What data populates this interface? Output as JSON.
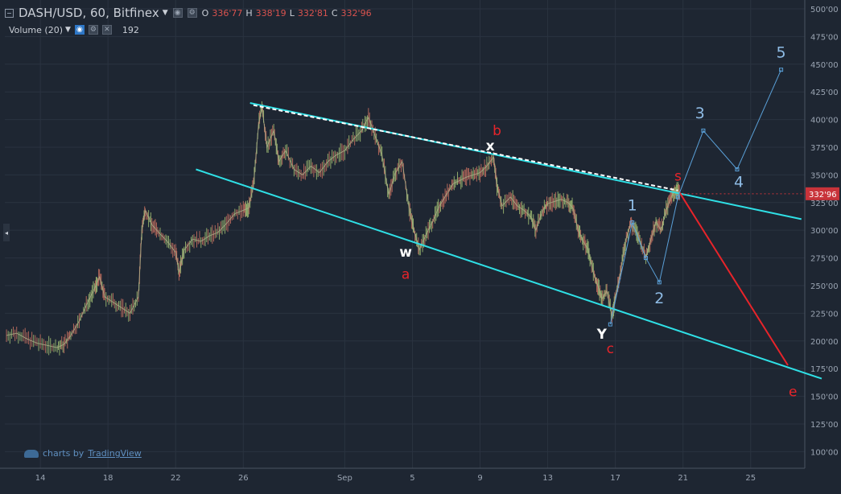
{
  "header": {
    "symbol": "DASH/USD, 60, Bitfinex",
    "ohlc": [
      {
        "k": "O",
        "v": "336'77"
      },
      {
        "k": "H",
        "v": "338'19"
      },
      {
        "k": "L",
        "v": "332'81"
      },
      {
        "k": "C",
        "v": "332'96"
      }
    ],
    "volume_label": "Volume (20)",
    "volume_value": "192"
  },
  "credit": {
    "prefix": "charts by",
    "brand": "TradingView"
  },
  "colors": {
    "background": "#1e2632",
    "grid": "#2a3340",
    "axis_text": "#9aa4b2",
    "channel": "#2fe0e6",
    "red_line": "#e8242a",
    "blue_line": "#5aa0d8",
    "label_red": "#e8242a",
    "label_blue": "#8fbce6",
    "label_white": "#ffffff",
    "price_tag": "#c8333a"
  },
  "chart_data": {
    "type": "line",
    "title": "DASH/USD, 60, Bitfinex",
    "ylim": [
      85,
      508
    ],
    "y_ticks": [
      100,
      125,
      150,
      175,
      200,
      225,
      250,
      275,
      300,
      325,
      350,
      375,
      400,
      425,
      450,
      475,
      500
    ],
    "y_tick_labels": [
      "100'00",
      "125'00",
      "150'00",
      "175'00",
      "200'00",
      "225'00",
      "250'00",
      "275'00",
      "300'00",
      "325'00",
      "350'00",
      "375'00",
      "400'00",
      "425'00",
      "450'00",
      "475'00",
      "500'00"
    ],
    "x_ticks": [
      {
        "label": "14",
        "day": 14
      },
      {
        "label": "18",
        "day": 18
      },
      {
        "label": "22",
        "day": 22
      },
      {
        "label": "26",
        "day": 26
      },
      {
        "label": "Sep",
        "day": 32
      },
      {
        "label": "5",
        "day": 36
      },
      {
        "label": "9",
        "day": 40
      },
      {
        "label": "13",
        "day": 44
      },
      {
        "label": "17",
        "day": 48
      },
      {
        "label": "21",
        "day": 52
      },
      {
        "label": "25",
        "day": 56
      }
    ],
    "x_range_days": [
      11.9,
      59.2
    ],
    "last_price": {
      "label": "332'96",
      "value": 332.96
    },
    "price_path": [
      [
        12.0,
        205
      ],
      [
        12.6,
        207
      ],
      [
        13.2,
        202
      ],
      [
        13.8,
        198
      ],
      [
        14.4,
        196
      ],
      [
        15.0,
        194
      ],
      [
        15.4,
        197
      ],
      [
        15.8,
        205
      ],
      [
        16.3,
        218
      ],
      [
        16.8,
        235
      ],
      [
        17.2,
        247
      ],
      [
        17.5,
        258
      ],
      [
        17.8,
        240
      ],
      [
        18.3,
        235
      ],
      [
        18.8,
        230
      ],
      [
        19.3,
        225
      ],
      [
        19.8,
        240
      ],
      [
        20.0,
        300
      ],
      [
        20.2,
        318
      ],
      [
        20.6,
        305
      ],
      [
        21.0,
        298
      ],
      [
        21.5,
        290
      ],
      [
        22.0,
        280
      ],
      [
        22.2,
        262
      ],
      [
        22.5,
        282
      ],
      [
        23.0,
        292
      ],
      [
        23.5,
        290
      ],
      [
        24.0,
        295
      ],
      [
        24.5,
        298
      ],
      [
        25.0,
        306
      ],
      [
        25.5,
        315
      ],
      [
        26.0,
        318
      ],
      [
        26.3,
        320
      ],
      [
        26.6,
        340
      ],
      [
        26.9,
        395
      ],
      [
        27.1,
        412
      ],
      [
        27.4,
        375
      ],
      [
        27.8,
        390
      ],
      [
        28.1,
        362
      ],
      [
        28.5,
        372
      ],
      [
        29.0,
        355
      ],
      [
        29.5,
        350
      ],
      [
        30.0,
        358
      ],
      [
        30.5,
        352
      ],
      [
        31.0,
        362
      ],
      [
        31.5,
        368
      ],
      [
        32.0,
        372
      ],
      [
        32.5,
        382
      ],
      [
        33.0,
        390
      ],
      [
        33.4,
        402
      ],
      [
        33.8,
        385
      ],
      [
        34.2,
        368
      ],
      [
        34.6,
        332
      ],
      [
        35.0,
        352
      ],
      [
        35.4,
        362
      ],
      [
        35.8,
        320
      ],
      [
        36.1,
        300
      ],
      [
        36.4,
        282
      ],
      [
        36.8,
        296
      ],
      [
        37.2,
        308
      ],
      [
        37.6,
        322
      ],
      [
        38.0,
        332
      ],
      [
        38.4,
        342
      ],
      [
        38.8,
        345
      ],
      [
        39.2,
        348
      ],
      [
        39.6,
        350
      ],
      [
        40.0,
        352
      ],
      [
        40.4,
        358
      ],
      [
        40.8,
        366
      ],
      [
        41.0,
        340
      ],
      [
        41.3,
        322
      ],
      [
        41.8,
        330
      ],
      [
        42.2,
        322
      ],
      [
        42.6,
        318
      ],
      [
        43.0,
        312
      ],
      [
        43.3,
        300
      ],
      [
        43.7,
        318
      ],
      [
        44.0,
        324
      ],
      [
        44.4,
        326
      ],
      [
        44.8,
        328
      ],
      [
        45.2,
        325
      ],
      [
        45.5,
        320
      ],
      [
        45.8,
        300
      ],
      [
        46.1,
        290
      ],
      [
        46.4,
        282
      ],
      [
        46.7,
        262
      ],
      [
        47.0,
        248
      ],
      [
        47.2,
        238
      ],
      [
        47.5,
        245
      ],
      [
        47.8,
        222
      ],
      [
        48.0,
        240
      ],
      [
        48.3,
        262
      ],
      [
        48.6,
        290
      ],
      [
        48.9,
        306
      ],
      [
        49.2,
        300
      ],
      [
        49.5,
        288
      ],
      [
        49.8,
        275
      ],
      [
        50.1,
        292
      ],
      [
        50.4,
        308
      ],
      [
        50.7,
        300
      ],
      [
        51.0,
        318
      ],
      [
        51.3,
        330
      ],
      [
        51.5,
        336
      ],
      [
        51.7,
        335
      ],
      [
        51.8,
        332.96
      ]
    ],
    "lines": [
      {
        "name": "upper-channel",
        "color": "channel",
        "points": [
          [
            26.4,
            415
          ],
          [
            59.0,
            310
          ]
        ]
      },
      {
        "name": "lower-channel",
        "color": "channel",
        "points": [
          [
            23.2,
            355
          ],
          [
            60.2,
            166
          ]
        ]
      },
      {
        "name": "dashed-upper",
        "color": "white-dashed",
        "points": [
          [
            26.6,
            413
          ],
          [
            51.7,
            336
          ]
        ]
      },
      {
        "name": "red-leg",
        "color": "red_line",
        "points": [
          [
            51.8,
            334
          ],
          [
            58.2,
            178
          ]
        ]
      },
      {
        "name": "blue-path",
        "color": "blue_line",
        "points": [
          [
            47.7,
            215
          ],
          [
            49.0,
            307
          ],
          [
            49.8,
            275
          ],
          [
            50.6,
            253
          ],
          [
            51.7,
            330
          ],
          [
            53.2,
            390
          ],
          [
            55.2,
            355
          ],
          [
            57.8,
            445
          ]
        ]
      }
    ],
    "annotations": [
      {
        "text": "b",
        "x": 41.0,
        "y": 386,
        "color": "label_red"
      },
      {
        "text": "x",
        "x": 40.6,
        "y": 372,
        "color": "label_white",
        "bold": true
      },
      {
        "text": "w",
        "x": 35.6,
        "y": 276,
        "color": "label_white",
        "bold": true
      },
      {
        "text": "a",
        "x": 35.6,
        "y": 256,
        "color": "label_red"
      },
      {
        "text": "Y",
        "x": 47.2,
        "y": 202,
        "color": "label_white",
        "bold": true
      },
      {
        "text": "c",
        "x": 47.7,
        "y": 189,
        "color": "label_red"
      },
      {
        "text": "s",
        "x": 51.7,
        "y": 345,
        "color": "label_red"
      },
      {
        "text": "1",
        "x": 49.0,
        "y": 318,
        "color": "label_blue"
      },
      {
        "text": "2",
        "x": 50.6,
        "y": 234,
        "color": "label_blue"
      },
      {
        "text": "3",
        "x": 53.0,
        "y": 401,
        "color": "label_blue"
      },
      {
        "text": "4",
        "x": 55.3,
        "y": 339,
        "color": "label_blue"
      },
      {
        "text": "5",
        "x": 57.8,
        "y": 456,
        "color": "label_blue"
      },
      {
        "text": "e",
        "x": 58.5,
        "y": 150,
        "color": "label_red"
      }
    ]
  }
}
